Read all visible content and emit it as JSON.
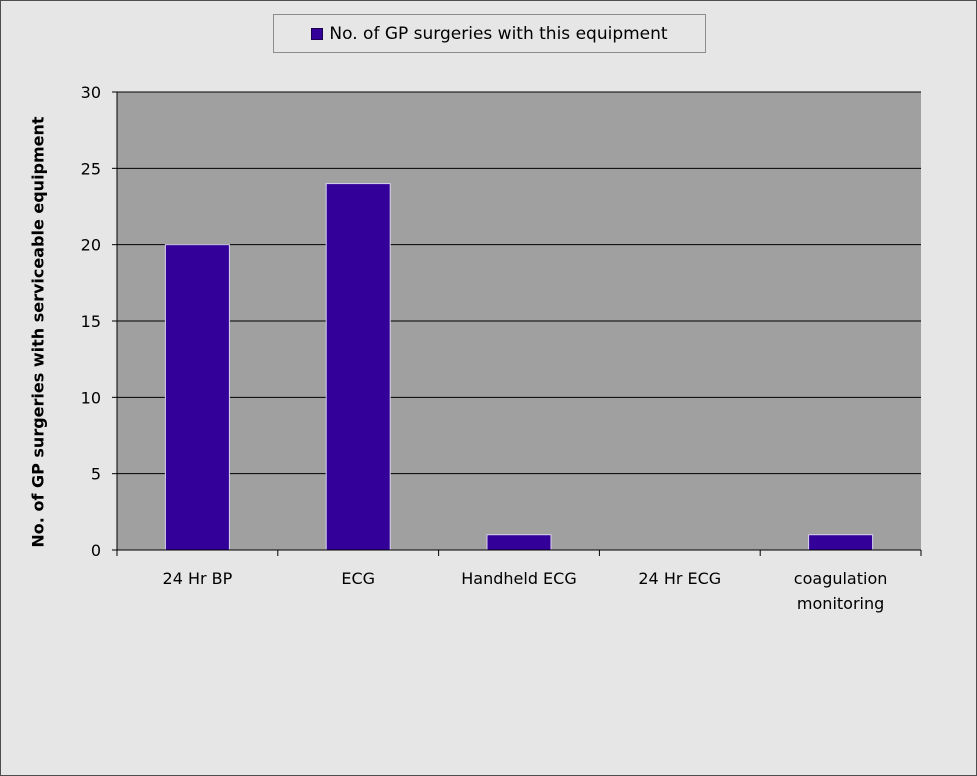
{
  "chart_data": {
    "type": "bar",
    "categories": [
      "24 Hr BP",
      "ECG",
      "Handheld ECG",
      "24 Hr ECG",
      "coagulation monitoring"
    ],
    "category_lines": [
      [
        "24 Hr BP"
      ],
      [
        "ECG"
      ],
      [
        "Handheld ECG"
      ],
      [
        "24 Hr ECG"
      ],
      [
        "coagulation",
        "monitoring"
      ]
    ],
    "series": [
      {
        "name": "No. of GP surgeries with this equipment",
        "values": [
          20,
          24,
          1,
          0,
          1
        ],
        "color": "#330099"
      }
    ],
    "ylabel": "No. of GP surgeries with serviceable equipment",
    "xlabel": "",
    "ylim": [
      0,
      30
    ],
    "yticks": [
      0,
      5,
      10,
      15,
      20,
      25,
      30
    ],
    "grid": true,
    "plot_background": "#a0a0a0",
    "legend_position": "top"
  }
}
